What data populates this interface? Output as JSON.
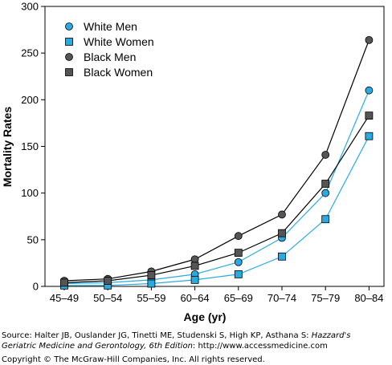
{
  "chart_data": {
    "type": "line",
    "title": "",
    "xlabel": "Age (yr)",
    "ylabel": "Mortality Rates",
    "categories": [
      "45–49",
      "50–54",
      "55–59",
      "60–64",
      "65–69",
      "70–74",
      "75–79",
      "80–84"
    ],
    "ylim": [
      0,
      300
    ],
    "yticks": [
      0,
      50,
      100,
      150,
      200,
      250,
      300
    ],
    "grid": false,
    "legend_position": "top-left",
    "series": [
      {
        "name": "White Men",
        "marker": "circle",
        "color": "#29ABE2",
        "line_color": "#29ABE2",
        "values": [
          3,
          4,
          7,
          13,
          26,
          52,
          100,
          210
        ]
      },
      {
        "name": "White Women",
        "marker": "square",
        "color": "#29ABE2",
        "line_color": "#29ABE2",
        "values": [
          1,
          1,
          3,
          7,
          13,
          32,
          72,
          161
        ]
      },
      {
        "name": "Black Men",
        "marker": "circle",
        "color": "#555555",
        "line_color": "#000000",
        "values": [
          6,
          8,
          16,
          29,
          54,
          77,
          141,
          264
        ]
      },
      {
        "name": "Black Women",
        "marker": "square",
        "color": "#555555",
        "line_color": "#000000",
        "values": [
          4,
          6,
          12,
          22,
          36,
          57,
          110,
          183
        ]
      }
    ]
  },
  "source": {
    "prefix": "Source: Halter JB, Ouslander JG, Tinetti ME, Studenski S, High KP, Asthana S: ",
    "book_title_1": "Hazzard's",
    "book_title_2": "Geriatric Medicine and Gerontology, 6th Edition",
    "suffix": ": http://www.accessmedicine.com"
  },
  "copyright": "Copyright © The McGraw-Hill Companies, Inc. All rights reserved."
}
